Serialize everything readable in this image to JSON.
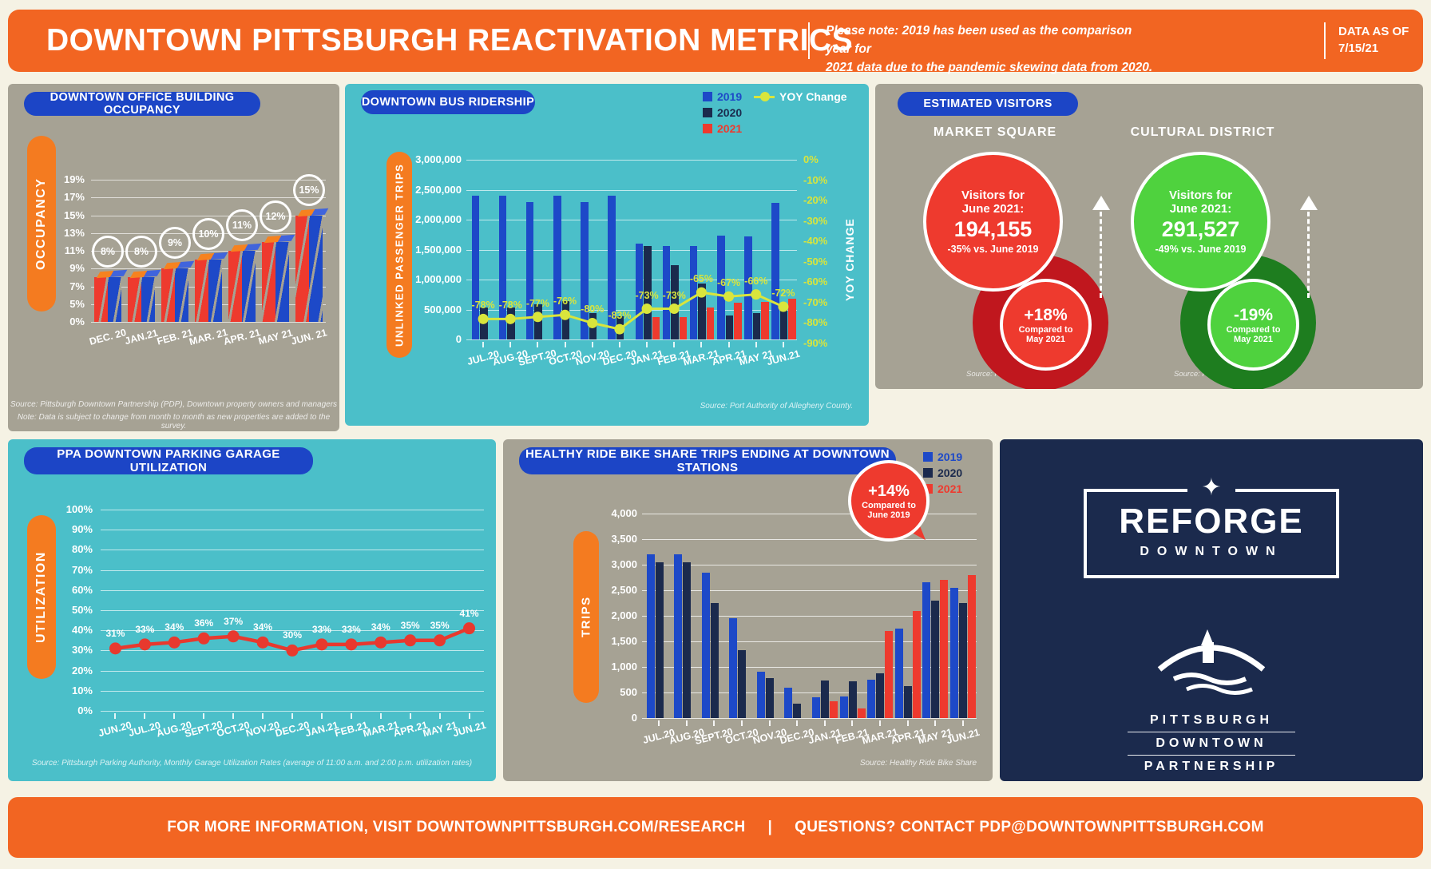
{
  "header": {
    "title": "DOWNTOWN PITTSBURGH REACTIVATION METRICS",
    "note_line1": "Please note: 2019 has been used as the comparison year for",
    "note_line2": "2021 data due to the pandemic skewing data from 2020.",
    "data_as_of_label": "DATA AS OF",
    "data_as_of_value": "7/15/21"
  },
  "colors": {
    "orange": "#F26522",
    "blue_pill": "#1C45C6",
    "bar_2019": "#1D49C8",
    "bar_2020": "#1B2A4D",
    "bar_2021": "#EE3A2E",
    "teal_panel": "#4BBFC9",
    "tan_panel": "#A6A294",
    "navy_panel": "#1B2A4D",
    "yoy_yellow": "#D9E53C",
    "red": "#EE3A2E",
    "dark_red": "#C0171E",
    "green": "#4FD23E",
    "dark_green": "#1E7D1F",
    "cream": "#F5F2E4"
  },
  "legend": {
    "items": [
      {
        "label": "2019",
        "color": "#1D49C8"
      },
      {
        "label": "2020",
        "color": "#1B2A4D"
      },
      {
        "label": "2021",
        "color": "#EE3A2E"
      }
    ],
    "yoy_label": "YOY Change"
  },
  "chart_data": [
    {
      "id": "occupancy",
      "type": "bar",
      "title": "DOWNTOWN OFFICE BUILDING OCCUPANCY",
      "ylabel": "OCCUPANCY",
      "yticks": [
        "19%",
        "17%",
        "15%",
        "13%",
        "11%",
        "9%",
        "7%",
        "5%",
        "0%"
      ],
      "ytick_values": [
        19,
        17,
        15,
        13,
        11,
        9,
        7,
        5,
        0
      ],
      "categories": [
        "DEC. 20",
        "JAN.21",
        "FEB. 21",
        "MAR. 21",
        "APR. 21",
        "MAY 21",
        "JUN. 21"
      ],
      "values": [
        8,
        8,
        9,
        10,
        11,
        12,
        15
      ],
      "value_labels": [
        "8%",
        "8%",
        "9%",
        "10%",
        "11%",
        "12%",
        "15%"
      ],
      "source_line1": "Source: Pittsburgh Downtown Partnership (PDP), Downtown property owners and managers",
      "source_line2": "Note: Data is subject to change from month to month as new properties are added to the survey."
    },
    {
      "id": "bus",
      "type": "bar+line",
      "title": "DOWNTOWN BUS RIDERSHIP",
      "ylabel": "UNLINKED PASSENGER TRIPS",
      "ylabel_right": "YOY CHANGE",
      "ylim": [
        0,
        3000000
      ],
      "yticks": [
        "3,000,000",
        "2,500,000",
        "2,000,000",
        "1,500,000",
        "1,000,000",
        "500,000",
        "0"
      ],
      "ylim_right": [
        0,
        -90
      ],
      "yticks_right": [
        "0%",
        "-10%",
        "-20%",
        "-30%",
        "-40%",
        "-50%",
        "-60%",
        "-70%",
        "-80%",
        "-90%"
      ],
      "categories": [
        "JUL.20",
        "AUG.20",
        "SEPT.20",
        "OCT.20",
        "NOV.20",
        "DEC.20",
        "JAN.21",
        "FEB.21",
        "MAR.21",
        "APR.21",
        "MAY 21",
        "JUN.21"
      ],
      "series": [
        {
          "name": "2019",
          "color": "#1D49C8",
          "values": [
            2400000,
            2400000,
            2300000,
            2400000,
            2300000,
            2400000,
            1600000,
            1560000,
            1560000,
            1730000,
            1720000,
            2280000
          ]
        },
        {
          "name": "2020",
          "color": "#1B2A4D",
          "values": [
            530000,
            540000,
            590000,
            640000,
            440000,
            390000,
            1560000,
            1240000,
            930000,
            400000,
            440000,
            550000
          ]
        },
        {
          "name": "2021",
          "color": "#EE3A2E",
          "values": [
            null,
            null,
            null,
            null,
            null,
            null,
            370000,
            370000,
            540000,
            610000,
            630000,
            680000
          ]
        }
      ],
      "line_series": {
        "name": "YOY Change",
        "color": "#D9E53C",
        "values": [
          -78,
          -78,
          -77,
          -76,
          -80,
          -83,
          -73,
          -73,
          -65,
          -67,
          -66,
          -72
        ],
        "labels": [
          "-78%",
          "-78%",
          "-77%",
          "-76%",
          "-80%",
          "-83%",
          "-73%",
          "-73%",
          "-65%",
          "-67%",
          "-66%",
          "-72%"
        ]
      },
      "source": "Source: Port Authority of Allegheny County."
    },
    {
      "id": "parking",
      "type": "line",
      "title": "PPA DOWNTOWN PARKING GARAGE UTILIZATION",
      "ylabel": "UTILIZATION",
      "ylim": [
        0,
        100
      ],
      "yticks": [
        "100%",
        "90%",
        "80%",
        "70%",
        "60%",
        "50%",
        "40%",
        "30%",
        "20%",
        "10%",
        "0%"
      ],
      "categories": [
        "JUN.20",
        "JUL.20",
        "AUG.20",
        "SEPT.20",
        "OCT.20",
        "NOV.20",
        "DEC.20",
        "JAN.21",
        "FEB.21",
        "MAR.21",
        "APR.21",
        "MAY 21",
        "JUN.21"
      ],
      "values": [
        31,
        33,
        34,
        36,
        37,
        34,
        30,
        33,
        33,
        34,
        35,
        35,
        41
      ],
      "value_labels": [
        "31%",
        "33%",
        "34%",
        "36%",
        "37%",
        "34%",
        "30%",
        "33%",
        "33%",
        "34%",
        "35%",
        "35%",
        "41%"
      ],
      "line_color": "#E8392E",
      "source": "Source: Pittsburgh Parking Authority, Monthly Garage Utilization Rates (average of 11:00 a.m. and 2:00 p.m. utilization rates)"
    },
    {
      "id": "bike",
      "type": "bar",
      "title": "HEALTHY RIDE BIKE SHARE TRIPS ENDING AT DOWNTOWN STATIONS",
      "ylabel": "TRIPS",
      "ylim": [
        0,
        4000
      ],
      "yticks": [
        "4,000",
        "3,500",
        "3,000",
        "2,500",
        "2,000",
        "1,500",
        "1,000",
        "500",
        "0"
      ],
      "categories": [
        "JUL.20",
        "AUG.20",
        "SEPT.20",
        "OCT.20",
        "NOV.20",
        "DEC.20",
        "JAN.21",
        "FEB.21",
        "MAR.21",
        "APR.21",
        "MAY 21",
        "JUN.21"
      ],
      "series": [
        {
          "name": "2019",
          "color": "#1D49C8",
          "values": [
            3200,
            3200,
            2850,
            1950,
            900,
            600,
            400,
            420,
            750,
            1750,
            2650,
            2550
          ]
        },
        {
          "name": "2020",
          "color": "#1B2A4D",
          "values": [
            3050,
            3050,
            2250,
            1330,
            780,
            280,
            730,
            720,
            880,
            620,
            2300,
            2250
          ]
        },
        {
          "name": "2021",
          "color": "#EE3A2E",
          "values": [
            null,
            null,
            null,
            null,
            null,
            null,
            330,
            180,
            1700,
            2100,
            2700,
            2800
          ]
        }
      ],
      "callout": {
        "value": "+14%",
        "line1": "Compared to",
        "line2": "June 2019"
      },
      "source": "Source: Healthy Ride Bike Share"
    }
  ],
  "visitors": {
    "title": "ESTIMATED VISITORS",
    "locations": [
      {
        "name": "MARKET SQUARE",
        "line1": "Visitors for",
        "line2": "June 2021:",
        "value": "194,155",
        "vs": "-35% vs. June 2019",
        "change": "+18%",
        "change_line1": "Compared to",
        "change_line2": "May 2021",
        "color": "#EE3A2E",
        "dark_color": "#C0171E",
        "source": "Source: Placer.ai"
      },
      {
        "name": "CULTURAL DISTRICT",
        "line1": "Visitors for",
        "line2": "June 2021:",
        "value": "291,527",
        "vs": "-49% vs. June 2019",
        "change": "-19%",
        "change_line1": "Compared to",
        "change_line2": "May 2021",
        "color": "#4FD23E",
        "dark_color": "#1E7D1F",
        "source": "Source: Placer.ai"
      }
    ]
  },
  "reforge": {
    "title": "REFORGE",
    "subtitle": "DOWNTOWN",
    "org_lines": [
      "PITTSBURGH",
      "DOWNTOWN",
      "PARTNERSHIP"
    ]
  },
  "footer": {
    "info": "FOR MORE INFORMATION, VISIT DOWNTOWNPITTSBURGH.COM/RESEARCH",
    "divider": "|",
    "questions": "QUESTIONS? CONTACT PDP@DOWNTOWNPITTSBURGH.COM"
  }
}
